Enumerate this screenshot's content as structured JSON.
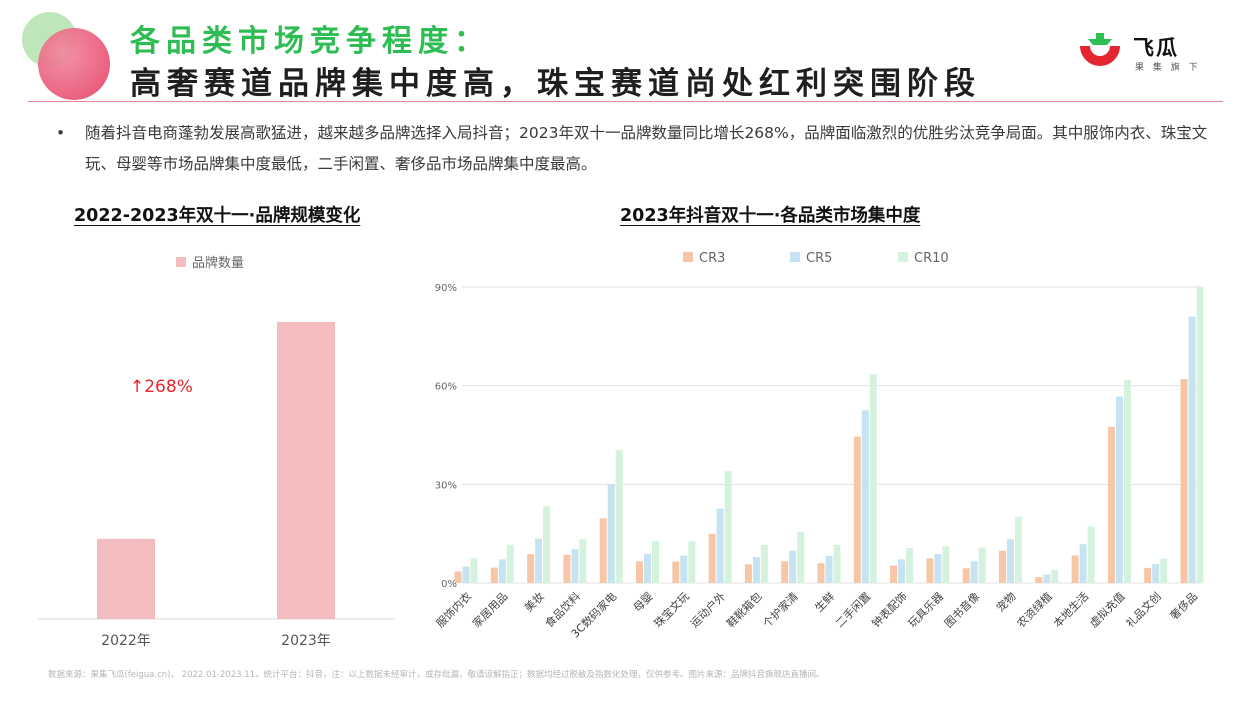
{
  "header": {
    "title_line1": "各品类市场竞争程度：",
    "title_line2": "高奢赛道品牌集中度高，珠宝赛道尚处红利突围阶段"
  },
  "logo": {
    "name": "飞瓜",
    "sub": "果 集 旗 下"
  },
  "bullet": {
    "marker": "•",
    "text": "随着抖音电商蓬勃发展高歌猛进，越来越多品牌选择入局抖音；2023年双十一品牌数量同比增长268%，品牌面临激烈的优胜劣汰竞争局面。其中服饰内衣、珠宝文玩、母婴等市场品牌集中度最低，二手闲置、奢侈品市场品牌集中度最高。"
  },
  "left_chart": {
    "section_title": "2022-2023年双十一·品牌规模变化",
    "growth_label": "↑268%"
  },
  "right_chart": {
    "section_title": "2023年抖音双十一·各品类市场集中度"
  },
  "colors": {
    "bar_left": "#f3bcbf",
    "cr3": "#f7c6a7",
    "cr5": "#c5e3f1",
    "cr10": "#d5f2df",
    "growth": "#e8262c",
    "title_green": "#2dbd52"
  },
  "chart_data": [
    {
      "type": "bar",
      "categories": [
        "2022年",
        "2023年"
      ],
      "series": [
        {
          "name": "品牌数量",
          "values": [
            27,
            100
          ]
        }
      ],
      "legend": "top-center",
      "grid": false
    },
    {
      "type": "bar",
      "categories": [
        "服饰内衣",
        "家居用品",
        "美妆",
        "食品饮料",
        "3C数码家电",
        "母婴",
        "珠宝文玩",
        "运动户外",
        "鞋靴箱包",
        "个护家清",
        "生鲜",
        "二手闲置",
        "钟表配饰",
        "玩具乐器",
        "图书音像",
        "宠物",
        "农资绿植",
        "本地生活",
        "虚拟充值",
        "礼品文创",
        "奢侈品"
      ],
      "series": [
        {
          "name": "CR3",
          "values": [
            3.5,
            4.7,
            8.8,
            8.6,
            19.7,
            6.6,
            6.5,
            15.0,
            5.7,
            6.6,
            6.0,
            44.5,
            5.3,
            7.5,
            4.5,
            9.8,
            1.8,
            8.4,
            47.5,
            4.6,
            62.0
          ]
        },
        {
          "name": "CR5",
          "values": [
            5.0,
            7.2,
            13.5,
            10.3,
            30.0,
            8.8,
            8.3,
            22.6,
            7.9,
            9.8,
            8.3,
            52.5,
            7.2,
            8.8,
            6.6,
            13.3,
            2.6,
            11.8,
            56.7,
            5.8,
            81.0
          ]
        },
        {
          "name": "CR10",
          "values": [
            7.5,
            11.6,
            23.3,
            13.3,
            40.5,
            12.8,
            12.7,
            34.0,
            11.6,
            15.6,
            11.6,
            63.5,
            10.6,
            11.2,
            10.8,
            20.2,
            4.0,
            17.2,
            61.7,
            7.4,
            90.0
          ]
        }
      ],
      "yticks": [
        "0%",
        "30%",
        "60%",
        "90%"
      ],
      "ylim": [
        0,
        90
      ],
      "legend": "top-center",
      "grid": true
    }
  ],
  "footer": {
    "source": "数据来源：果集飞瓜(feigua.cn)， 2022.01-2023.11，统计平台：抖音，注：以上数据未经审计，或存纰漏，敬请谅解指正；数据均经过脱敏及指数化处理，仅供参考。图片来源：品牌抖音旗舰店直播间。"
  }
}
